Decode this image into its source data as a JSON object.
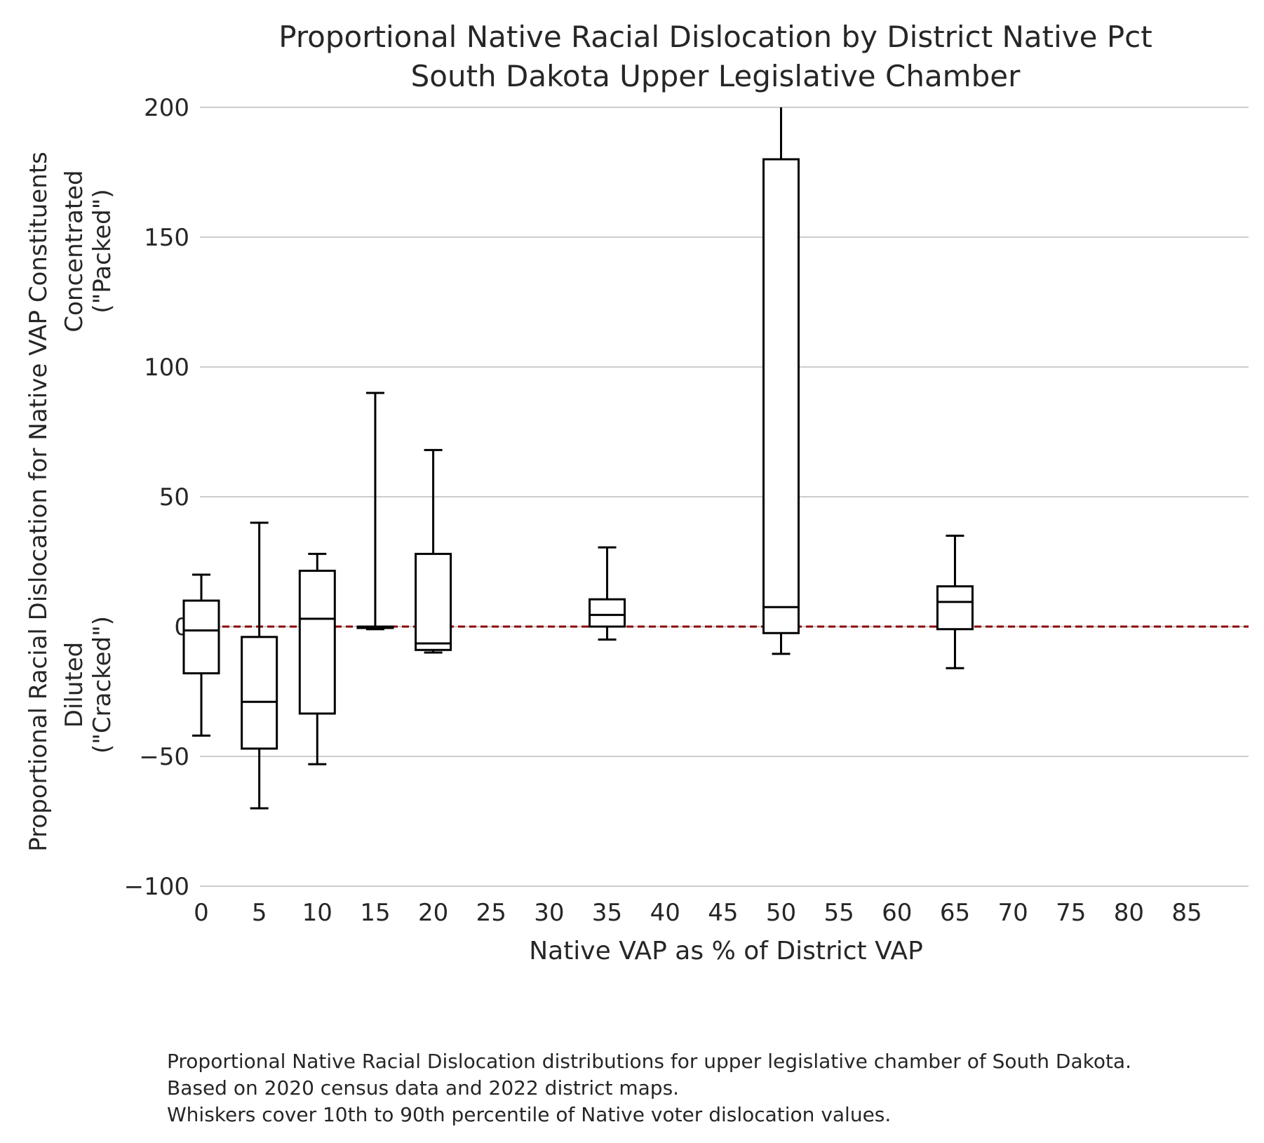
{
  "chart_data": {
    "type": "box",
    "title": "Proportional Native Racial Dislocation by District Native Pct",
    "subtitle": "South Dakota Upper Legislative Chamber",
    "xlabel": "Native VAP as % of District VAP",
    "ylabel": "Proportional Racial Dislocation for Native VAP Constituents",
    "ylabel_upper": [
      "Concentrated",
      "(\"Packed\")"
    ],
    "ylabel_lower": [
      "Diluted",
      "(\"Cracked\")"
    ],
    "xlim": [
      -2.5,
      87.5
    ],
    "ylim": [
      -100,
      200
    ],
    "x_ticks": [
      0,
      5,
      10,
      15,
      20,
      25,
      30,
      35,
      40,
      45,
      50,
      55,
      60,
      65,
      70,
      75,
      80,
      85
    ],
    "y_ticks": [
      -100,
      -50,
      0,
      50,
      100,
      150,
      200
    ],
    "grid": "horizontal",
    "reference_line": {
      "y": 0,
      "style": "dashed",
      "color": "#8b0000"
    },
    "boxes": [
      {
        "x": 0,
        "whisker_low": -42,
        "q1": -18,
        "median": -1.5,
        "q3": 10,
        "whisker_high": 20
      },
      {
        "x": 5,
        "whisker_low": -70,
        "q1": -47,
        "median": -29,
        "q3": -4,
        "whisker_high": 40
      },
      {
        "x": 10,
        "whisker_low": -53,
        "q1": -33.5,
        "median": 3,
        "q3": 21.5,
        "whisker_high": 28
      },
      {
        "x": 15,
        "whisker_low": -1,
        "q1": -0.5,
        "median": 0,
        "q3": 0,
        "whisker_high": 90
      },
      {
        "x": 20,
        "whisker_low": -10,
        "q1": -9,
        "median": -6.5,
        "q3": 28,
        "whisker_high": 68
      },
      {
        "x": 35,
        "whisker_low": -5,
        "q1": 0,
        "median": 4.5,
        "q3": 10.5,
        "whisker_high": 30.5
      },
      {
        "x": 50,
        "whisker_low": -10.5,
        "q1": -2.5,
        "median": 7.5,
        "q3": 180,
        "whisker_high": 200
      },
      {
        "x": 65,
        "whisker_low": -16,
        "q1": -1,
        "median": 9.5,
        "q3": 15.5,
        "whisker_high": 35
      }
    ],
    "colors": {
      "box": "#000000",
      "grid": "#cccccc",
      "reference": "#8b0000",
      "text": "#262626"
    }
  },
  "caption": [
    "Proportional Native Racial Dislocation distributions for upper legislative chamber of South Dakota.",
    "Based on 2020 census data and 2022 district maps.",
    "Whiskers cover 10th to 90th percentile of Native voter dislocation values."
  ]
}
